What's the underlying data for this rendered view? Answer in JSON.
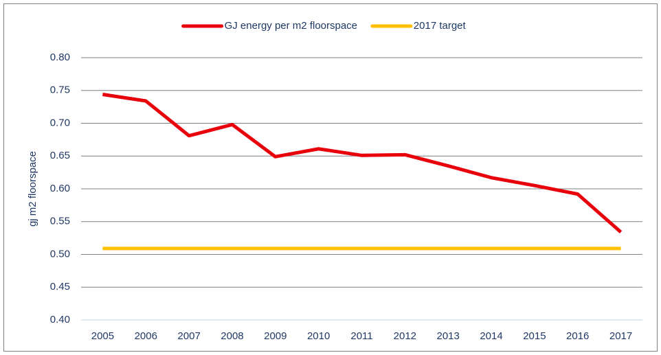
{
  "chart_data": {
    "type": "line",
    "y_label": "gj m2 floorspace",
    "categories": [
      "2005",
      "2006",
      "2007",
      "2008",
      "2009",
      "2010",
      "2011",
      "2012",
      "2013",
      "2014",
      "2015",
      "2016",
      "2017"
    ],
    "series": [
      {
        "name": "GJ energy per m2 floorspace",
        "color": "#e8000b",
        "values": [
          0.744,
          0.734,
          0.681,
          0.698,
          0.649,
          0.661,
          0.651,
          0.652,
          0.635,
          0.617,
          0.605,
          0.592,
          0.534
        ]
      },
      {
        "name": "2017 target",
        "color": "#ffc000",
        "values": [
          0.509,
          0.509,
          0.509,
          0.509,
          0.509,
          0.509,
          0.509,
          0.509,
          0.509,
          0.509,
          0.509,
          0.509,
          0.509
        ]
      }
    ],
    "ylim": [
      0.4,
      0.8
    ],
    "yticks": [
      {
        "value": 0.4,
        "label": "0.40"
      },
      0.45,
      {
        "value": 0.5,
        "label": "0.50"
      },
      0.55,
      {
        "value": 0.6,
        "label": "0.60"
      },
      0.65,
      {
        "value": 0.7,
        "label": "0.70"
      },
      0.75,
      {
        "value": 0.8,
        "label": "0.80"
      }
    ],
    "grid": true,
    "legend": "top"
  }
}
